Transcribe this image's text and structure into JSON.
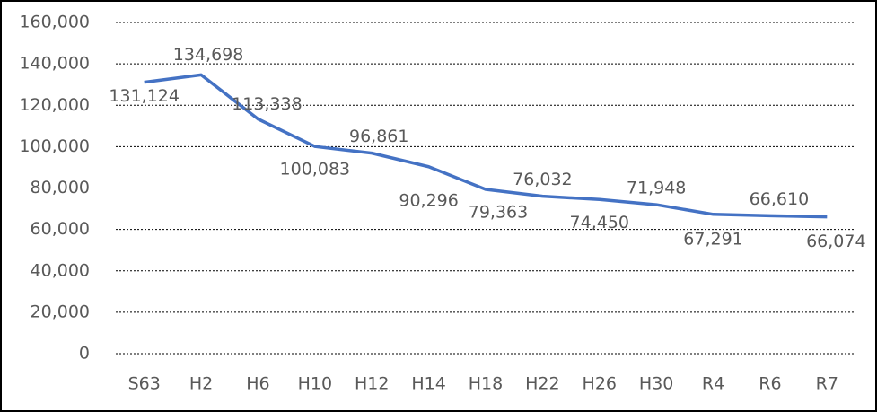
{
  "chart_data": {
    "type": "line",
    "categories": [
      "S63",
      "H2",
      "H6",
      "H10",
      "H12",
      "H14",
      "H18",
      "H22",
      "H26",
      "H30",
      "R4",
      "R6",
      "R7"
    ],
    "series": [
      {
        "color": "#4472c4",
        "values": [
          131124,
          134698,
          113338,
          100083,
          96861,
          90296,
          79363,
          76032,
          74450,
          71948,
          67291,
          66610,
          66074
        ],
        "value_labels": [
          "131,124",
          "134,698",
          "113,338",
          "100,083",
          "96,861",
          "90,296",
          "79,363",
          "76,032",
          "74,450",
          "71,948",
          "67,291",
          "66,610",
          "66,074"
        ]
      }
    ],
    "ylim": [
      0,
      160000
    ],
    "yticks": [
      0,
      {
        "value": 20000,
        "label": "20,000"
      },
      {
        "value": 40000,
        "label": "40,000"
      },
      {
        "value": 60000,
        "label": "60,000"
      },
      {
        "value": 80000,
        "label": "80,000"
      },
      {
        "value": 100000,
        "label": "100,000"
      },
      {
        "value": 120000,
        "label": "120,000"
      },
      {
        "value": 140000,
        "label": "140,000"
      },
      {
        "value": 160000,
        "label": "160,000"
      }
    ],
    "grid": true
  }
}
